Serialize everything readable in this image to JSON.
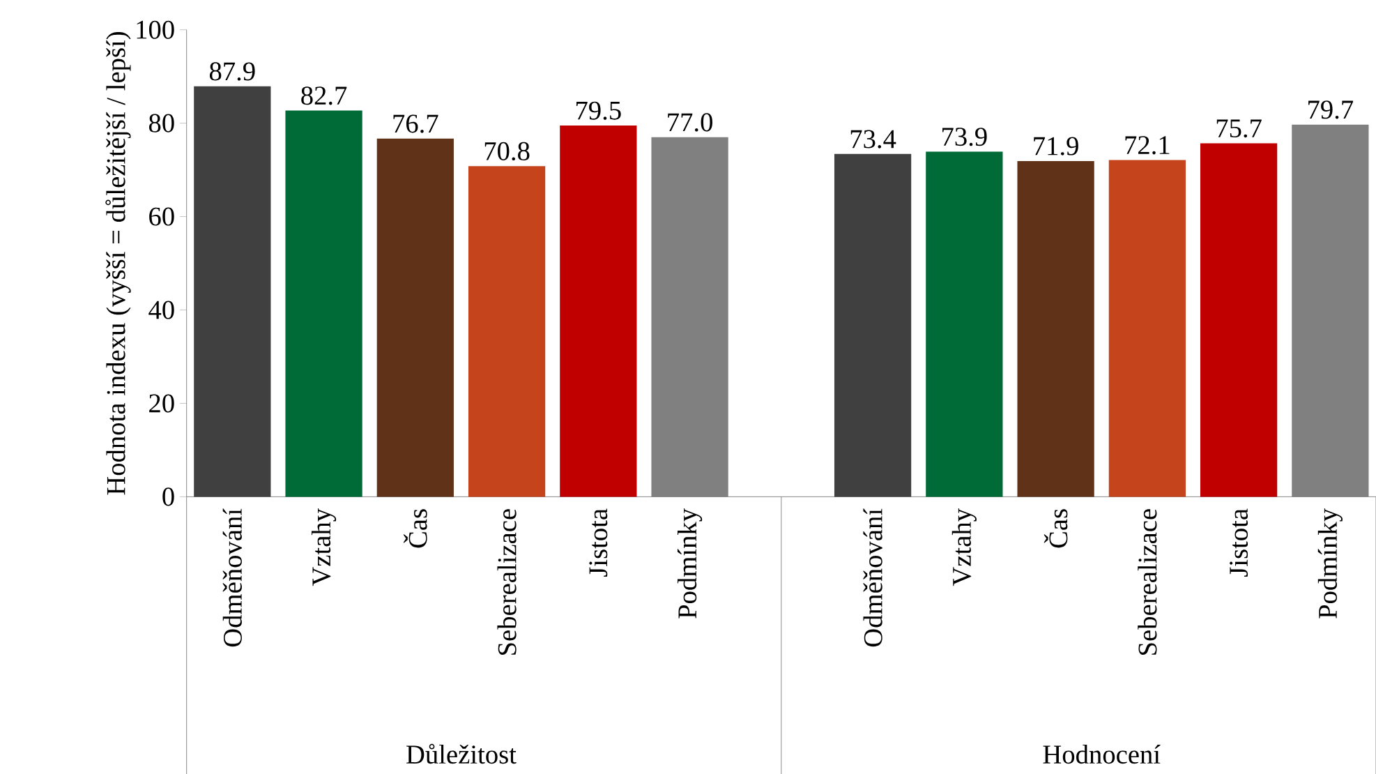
{
  "chart_data": {
    "type": "bar",
    "ylabel": "Hodnota indexu (vyšší = důležitější / lepší)",
    "categories": [
      "Odměňování",
      "Vztahy",
      "Čas",
      "Seberealizace",
      "Jistota",
      "Podmínky",
      null,
      "Odměňování",
      "Vztahy",
      "Čas",
      "Seberealizace",
      "Jistota",
      "Podmínky"
    ],
    "values": [
      87.9,
      82.7,
      76.7,
      70.8,
      79.5,
      77.0,
      null,
      73.4,
      73.9,
      71.9,
      72.1,
      75.7,
      79.7
    ],
    "colors": [
      "#404040",
      "#006b36",
      "#603318",
      "#c5441c",
      "#c00000",
      "#808080",
      null,
      "#404040",
      "#006b36",
      "#603318",
      "#c5441c",
      "#c00000",
      "#808080"
    ],
    "ylim": [
      0,
      100
    ],
    "yticks": [
      0,
      20,
      40,
      60,
      80,
      100
    ],
    "value_labels": [
      "87.9",
      "82.7",
      "76.7",
      "70.8",
      "79.5",
      "77.0",
      null,
      "73.4",
      "73.9",
      "71.9",
      "72.1",
      "75.7",
      "79.7"
    ],
    "annotations": [
      "Důležitost",
      "Hodnocení"
    ]
  }
}
